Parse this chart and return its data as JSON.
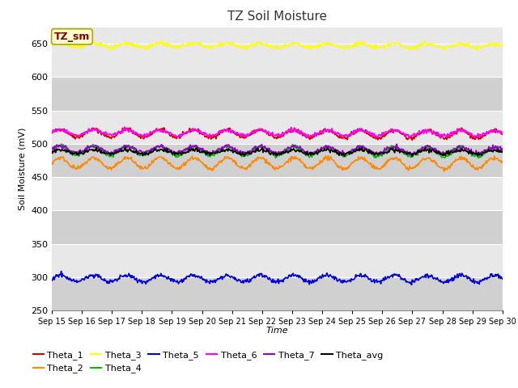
{
  "title": "TZ Soil Moisture",
  "xlabel": "Time",
  "ylabel": "Soil Moisture (mV)",
  "ylim": [
    250,
    675
  ],
  "yticks": [
    250,
    300,
    350,
    400,
    450,
    500,
    550,
    600,
    650
  ],
  "n_points": 720,
  "background_color": "#dedede",
  "band_color_light": "#e8e8e8",
  "band_color_dark": "#d0d0d0",
  "series_order": [
    "Theta_1",
    "Theta_2",
    "Theta_3",
    "Theta_4",
    "Theta_5",
    "Theta_6",
    "Theta_7",
    "Theta_avg"
  ],
  "series": {
    "Theta_1": {
      "color": "#dd0000",
      "base": 516,
      "trend": -2.0,
      "amp": 6,
      "freq": 1.8
    },
    "Theta_2": {
      "color": "#ff8800",
      "base": 471,
      "trend": -0.5,
      "amp": 8,
      "freq": 1.8
    },
    "Theta_3": {
      "color": "#ffff00",
      "base": 648,
      "trend": -1.2,
      "amp": 3,
      "freq": 1.8
    },
    "Theta_4": {
      "color": "#00bb00",
      "base": 490,
      "trend": -2.5,
      "amp": 7,
      "freq": 1.8
    },
    "Theta_5": {
      "color": "#0000dd",
      "base": 298,
      "trend": -0.5,
      "amp": 5,
      "freq": 1.8
    },
    "Theta_6": {
      "color": "#ff00ff",
      "base": 517,
      "trend": -1.0,
      "amp": 4,
      "freq": 1.8
    },
    "Theta_7": {
      "color": "#9900cc",
      "base": 492,
      "trend": -2.0,
      "amp": 5,
      "freq": 1.8
    },
    "Theta_avg": {
      "color": "#000000",
      "base": 488,
      "trend": -0.3,
      "amp": 3,
      "freq": 1.8
    }
  },
  "legend_label": "TZ_sm",
  "legend_box_color": "#ffffcc",
  "legend_text_color": "#880000",
  "legend_border_color": "#aaaa00",
  "x_tick_labels": [
    "Sep 15",
    "Sep 16",
    "Sep 17",
    "Sep 18",
    "Sep 19",
    "Sep 20",
    "Sep 21",
    "Sep 22",
    "Sep 23",
    "Sep 24",
    "Sep 25",
    "Sep 26",
    "Sep 27",
    "Sep 28",
    "Sep 29",
    "Sep 30"
  ]
}
